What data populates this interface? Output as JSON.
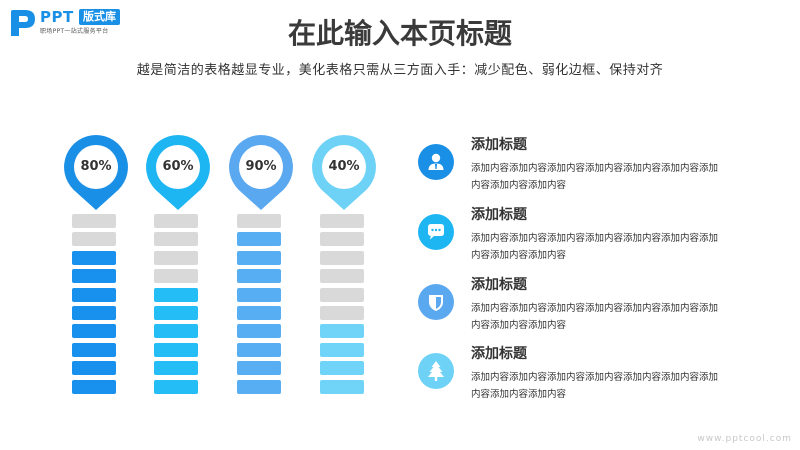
{
  "logo": {
    "brand": "PPT",
    "badge": "版式库",
    "tagline": "职场PPT一站式服务平台",
    "color": "#1a8fe6"
  },
  "header": {
    "title": "在此输入本页标题",
    "subtitle": "越是简洁的表格越显专业，美化表格只需从三方面入手：减少配色、弱化边框、保持对齐"
  },
  "chart_data": {
    "type": "bar",
    "segments_total": 10,
    "empty_color": "#d9d9d9",
    "series": [
      {
        "label": "80%",
        "value": 80,
        "color": "#1a8fe6",
        "bar_color": "#1890ee"
      },
      {
        "label": "60%",
        "value": 60,
        "color": "#1db6f2",
        "bar_color": "#24bdf5"
      },
      {
        "label": "90%",
        "value": 90,
        "color": "#5aa8f0",
        "bar_color": "#57aef2"
      },
      {
        "label": "40%",
        "value": 40,
        "color": "#6ed2f7",
        "bar_color": "#70d4f8"
      }
    ]
  },
  "items": [
    {
      "title": "添加标题",
      "text": "添加内容添加内容添加内容添加内容添加内容添加内容添加内容添加内容添加内容",
      "icon": "user-icon",
      "color": "#1a8fe6"
    },
    {
      "title": "添加标题",
      "text": "添加内容添加内容添加内容添加内容添加内容添加内容添加内容添加内容添加内容",
      "icon": "chat-icon",
      "color": "#1db6f2"
    },
    {
      "title": "添加标题",
      "text": "添加内容添加内容添加内容添加内容添加内容添加内容添加内容添加内容添加内容",
      "icon": "shield-icon",
      "color": "#5aa8f0"
    },
    {
      "title": "添加标题",
      "text": "添加内容添加内容添加内容添加内容添加内容添加内容添加内容添加内容添加内容",
      "icon": "tree-icon",
      "color": "#6ed2f7"
    }
  ],
  "watermark": "www.pptcool.com"
}
